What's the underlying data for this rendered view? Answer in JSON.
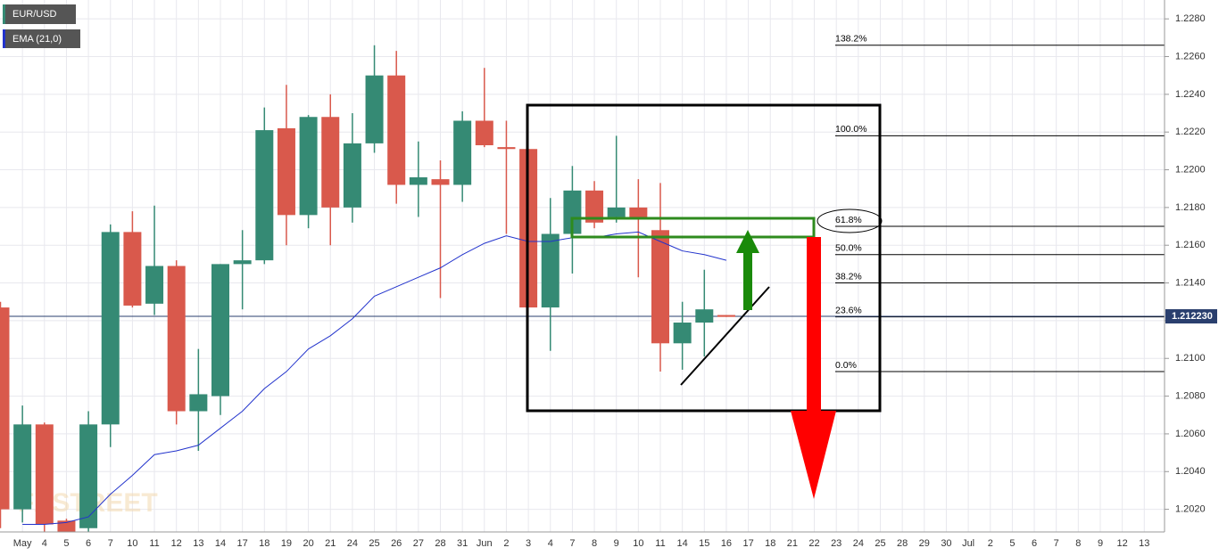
{
  "chart_data": {
    "type": "candlestick",
    "watermark": "FXSTREET",
    "categories": [
      null,
      "May",
      "4",
      "5",
      "6",
      "7",
      "10",
      "11",
      "12",
      "13",
      "14",
      "17",
      "18",
      "19",
      "20",
      "21",
      "24",
      "25",
      "26",
      "27",
      "28",
      "31",
      "Jun",
      "2",
      "3",
      "4",
      "7",
      "8",
      "9",
      "10",
      "11",
      "14",
      "15",
      "16",
      "17",
      "18",
      "21",
      "22",
      "23",
      "24",
      "25",
      "28",
      "29",
      "30",
      "Jul",
      "2",
      "5",
      "6",
      "7",
      "8",
      "9",
      "12",
      "13"
    ],
    "series": [
      {
        "name": "EUR/USD",
        "type": "candlestick",
        "up_color": "#358a74",
        "down_color": "#d9594c",
        "open": [
          1.2127,
          1.202,
          1.2065,
          1.2014,
          1.201,
          1.2065,
          1.2167,
          1.2129,
          1.2149,
          1.2072,
          1.208,
          1.215,
          1.2152,
          1.2222,
          1.2176,
          1.2228,
          1.218,
          1.2214,
          1.225,
          1.2192,
          1.2195,
          1.2192,
          1.2226,
          1.2212,
          1.2211,
          1.2127,
          1.2166,
          1.2189,
          1.2175,
          1.218,
          1.2168,
          1.2108,
          1.2119,
          1.2123,
          null,
          null,
          null,
          null,
          null,
          null,
          null,
          null,
          null,
          null,
          null,
          null,
          null,
          null,
          null,
          null,
          null,
          null,
          null
        ],
        "high": [
          1.213,
          1.2075,
          1.2066,
          1.2015,
          1.2072,
          1.2171,
          1.2178,
          1.2181,
          1.2152,
          1.2105,
          1.215,
          1.2168,
          1.2233,
          1.2245,
          1.2229,
          1.224,
          1.223,
          1.2266,
          1.2263,
          1.2215,
          1.2205,
          1.2231,
          1.2254,
          1.2226,
          1.2211,
          1.2185,
          1.2202,
          1.2194,
          1.2218,
          1.2195,
          1.2193,
          1.213,
          1.2147,
          1.2123,
          null,
          null,
          null,
          null,
          null,
          null,
          null,
          null,
          null,
          null,
          null,
          null,
          null,
          null,
          null,
          null,
          null,
          null,
          null
        ],
        "low": [
          1.201,
          1.2013,
          1.2008,
          1.2005,
          1.2005,
          1.2053,
          1.2127,
          1.2123,
          1.2065,
          1.2051,
          1.207,
          1.2126,
          1.215,
          1.216,
          1.2169,
          1.216,
          1.2172,
          1.2209,
          1.2182,
          1.2175,
          1.2132,
          1.2183,
          1.2212,
          1.2166,
          1.2127,
          1.2104,
          1.2145,
          1.2169,
          1.2172,
          1.2143,
          1.2093,
          1.2094,
          1.2101,
          1.2122,
          null,
          null,
          null,
          null,
          null,
          null,
          null,
          null,
          null,
          null,
          null,
          null,
          null,
          null,
          null,
          null,
          null,
          null,
          null
        ],
        "close": [
          1.202,
          1.2065,
          1.2012,
          1.2008,
          1.2065,
          1.2167,
          1.2128,
          1.2149,
          1.2072,
          1.2081,
          1.215,
          1.2152,
          1.2221,
          1.2176,
          1.2228,
          1.218,
          1.2214,
          1.225,
          1.2192,
          1.2196,
          1.2192,
          1.2226,
          1.2213,
          1.2211,
          1.2127,
          1.2166,
          1.2189,
          1.2172,
          1.218,
          1.2174,
          1.2108,
          1.2119,
          1.2126,
          1.2122,
          null,
          null,
          null,
          null,
          null,
          null,
          null,
          null,
          null,
          null,
          null,
          null,
          null,
          null,
          null,
          null,
          null,
          null,
          null
        ]
      },
      {
        "name": "EMA (21,0)",
        "type": "line",
        "color": "#2233cc",
        "values": [
          null,
          1.2012,
          1.2012,
          1.2013,
          1.2016,
          1.2028,
          1.2038,
          1.2049,
          1.2051,
          1.2054,
          1.2063,
          1.2072,
          1.2084,
          1.2093,
          1.2105,
          1.2112,
          1.2121,
          1.2133,
          1.2138,
          1.2143,
          1.2148,
          1.2155,
          1.2161,
          1.2165,
          1.2162,
          1.2162,
          1.2164,
          1.2164,
          1.2166,
          1.2167,
          1.2162,
          1.2157,
          1.2155,
          1.2152,
          null,
          null,
          null,
          null,
          null,
          null,
          null,
          null,
          null,
          null,
          null,
          null,
          null,
          null,
          null,
          null,
          null,
          null,
          null
        ]
      }
    ],
    "ylim": [
      1.2008,
      1.229
    ],
    "yticks": [
      {
        "value": 1.202,
        "label": "1.2020"
      },
      {
        "value": 1.204,
        "label": "1.2040"
      },
      {
        "value": 1.206,
        "label": "1.2060"
      },
      {
        "value": 1.208,
        "label": "1.2080"
      },
      {
        "value": 1.21,
        "label": "1.2100"
      },
      {
        "value": 1.212,
        "label": "1.2120"
      },
      {
        "value": 1.214,
        "label": "1.2140"
      },
      {
        "value": 1.216,
        "label": "1.2160"
      },
      {
        "value": 1.218,
        "label": "1.2180"
      },
      {
        "value": 1.22,
        "label": "1.2200"
      },
      {
        "value": 1.222,
        "label": "1.2220"
      },
      {
        "value": 1.224,
        "label": "1.2240"
      },
      {
        "value": 1.226,
        "label": "1.2260"
      },
      {
        "value": 1.228,
        "label": "1.2280"
      }
    ],
    "grid": true,
    "last_price": {
      "value": 1.21223,
      "label": "1.212230",
      "color": "#2a3f6e"
    },
    "fibonacci": [
      {
        "value": 1.2266,
        "label": "138.2%"
      },
      {
        "value": 1.2218,
        "label": "100.0%"
      },
      {
        "value": 1.217,
        "label": "61.8%"
      },
      {
        "value": 1.2155,
        "label": "50.0%"
      },
      {
        "value": 1.214,
        "label": "38.2%"
      },
      {
        "value": 1.2122,
        "label": "23.6%"
      },
      {
        "value": 1.2093,
        "label": "0.0%"
      }
    ]
  }
}
